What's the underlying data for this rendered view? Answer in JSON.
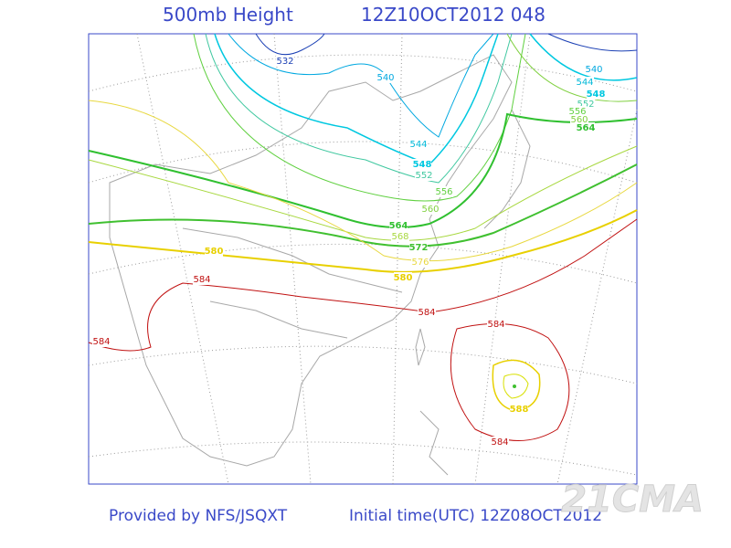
{
  "header": {
    "title": "500mb Height",
    "valid": "12Z10OCT2012 048"
  },
  "contour_labels": [
    "532",
    "540",
    "540",
    "544",
    "548",
    "552",
    "556",
    "560",
    "564",
    "544",
    "548",
    "552",
    "556",
    "560",
    "564",
    "568",
    "572",
    "576",
    "580",
    "580",
    "584",
    "584",
    "584",
    "584",
    "584",
    "588"
  ],
  "footer": {
    "provider": "Provided by NFS/JSQXT",
    "initial": "Initial time(UTC) 12Z08OCT2012"
  },
  "watermark": "21CMA"
}
